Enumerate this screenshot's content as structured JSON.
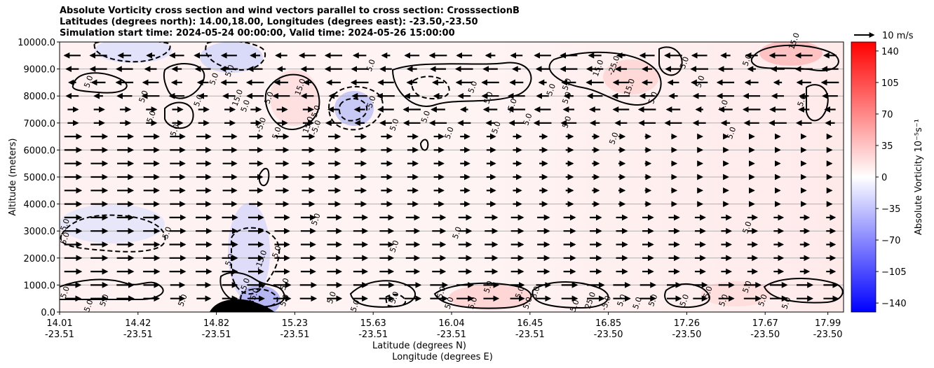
{
  "chart_data": {
    "type": "contour",
    "title_lines": [
      "Absolute Vorticity cross section and wind vectors parallel to cross section: CrosssectionB",
      "Latitudes (degrees north): 14.00,18.00, Longitudes (degrees east): -23.50,-23.50",
      "Simulation start time: 2024-05-24 00:00:00, Valid time: 2024-05-26 15:00:00"
    ],
    "ylabel": "Altitude (meters)",
    "xlabel_line1": "Latitude (degrees N)",
    "xlabel_line2": "Longitude (degrees E)",
    "ylim": [
      0,
      10000
    ],
    "yticks": [
      0,
      1000,
      2000,
      3000,
      4000,
      5000,
      6000,
      7000,
      8000,
      9000,
      10000
    ],
    "ytick_labels": [
      "0.0",
      "1000.0",
      "2000.0",
      "3000.0",
      "4000.0",
      "5000.0",
      "6000.0",
      "7000.0",
      "8000.0",
      "9000.0",
      "10000.0"
    ],
    "xticks": [
      {
        "lat": "14.01",
        "lon": "-23.51"
      },
      {
        "lat": "14.42",
        "lon": "-23.51"
      },
      {
        "lat": "14.82",
        "lon": "-23.51"
      },
      {
        "lat": "15.23",
        "lon": "-23.51"
      },
      {
        "lat": "15.63",
        "lon": "-23.51"
      },
      {
        "lat": "16.04",
        "lon": "-23.51"
      },
      {
        "lat": "16.45",
        "lon": "-23.51"
      },
      {
        "lat": "16.85",
        "lon": "-23.50"
      },
      {
        "lat": "17.26",
        "lon": "-23.50"
      },
      {
        "lat": "17.67",
        "lon": "-23.50"
      },
      {
        "lat": "17.99",
        "lon": "-23.50"
      }
    ],
    "xtick_fractions": [
      0,
      0.1,
      0.2,
      0.3,
      0.4,
      0.5,
      0.6,
      0.7,
      0.8,
      0.9,
      0.98
    ],
    "colorbar": {
      "label": "Absolute Vorticity 10⁻⁵s⁻¹",
      "range": [
        -150,
        150
      ],
      "ticks": [
        140,
        105,
        70,
        35,
        0,
        -35,
        -70,
        -105,
        -140
      ],
      "tick_labels": [
        "140",
        "105",
        "70",
        "35",
        "0",
        "−35",
        "−70",
        "−105",
        "−140"
      ],
      "colormap": "bwr"
    },
    "quiver_key": {
      "label": "10 m/s"
    },
    "contour_labels": [
      {
        "text": "5.0",
        "x": 0.01,
        "y": 3200
      },
      {
        "text": "5.0",
        "x": 0.04,
        "y": 8500
      },
      {
        "text": "5.0",
        "x": 0.11,
        "y": 7950
      },
      {
        "text": "5.0",
        "x": 0.12,
        "y": 7200
      },
      {
        "text": "5.0",
        "x": 0.15,
        "y": 6700
      },
      {
        "text": "5.0",
        "x": 0.18,
        "y": 7800
      },
      {
        "text": "5.0",
        "x": 0.2,
        "y": 8600
      },
      {
        "text": "5.0",
        "x": 0.22,
        "y": 8900
      },
      {
        "text": "5.0",
        "x": 0.24,
        "y": 7600
      },
      {
        "text": "15.0",
        "x": 0.23,
        "y": 7900
      },
      {
        "text": "5.0",
        "x": 0.33,
        "y": 7400
      },
      {
        "text": "5.0",
        "x": 0.27,
        "y": 7900
      },
      {
        "text": "-5.0",
        "x": 0.26,
        "y": 6900
      },
      {
        "text": "5.0",
        "x": 0.28,
        "y": 6600
      },
      {
        "text": "15.0",
        "x": 0.31,
        "y": 8300
      },
      {
        "text": "15.0",
        "x": 0.32,
        "y": 6900
      },
      {
        "text": "-5.0",
        "x": 0.33,
        "y": 6800
      },
      {
        "text": "-5.0",
        "x": 0.4,
        "y": 7700
      },
      {
        "text": "5.0",
        "x": 0.4,
        "y": 9100
      },
      {
        "text": "5.0",
        "x": 0.43,
        "y": 6900
      },
      {
        "text": "5.0",
        "x": 0.47,
        "y": 7200
      },
      {
        "text": "5.0",
        "x": 0.5,
        "y": 6600
      },
      {
        "text": "5.0",
        "x": 0.53,
        "y": 8300
      },
      {
        "text": "5.0",
        "x": 0.55,
        "y": 7900
      },
      {
        "text": "-5.0",
        "x": 0.58,
        "y": 7600
      },
      {
        "text": "5.0",
        "x": 0.6,
        "y": 7100
      },
      {
        "text": "5.0",
        "x": 0.63,
        "y": 8200
      },
      {
        "text": "5.0",
        "x": 0.65,
        "y": 8400
      },
      {
        "text": "5.0",
        "x": 0.65,
        "y": 7900
      },
      {
        "text": "15.0",
        "x": 0.69,
        "y": 9000
      },
      {
        "text": "-25.0",
        "x": 0.71,
        "y": 9100
      },
      {
        "text": "15.0",
        "x": 0.73,
        "y": 8300
      },
      {
        "text": "5.0",
        "x": 0.76,
        "y": 7900
      },
      {
        "text": "5.0",
        "x": 0.8,
        "y": 9200
      },
      {
        "text": "5.0",
        "x": 0.82,
        "y": 8500
      },
      {
        "text": "5.0",
        "x": 0.85,
        "y": 7600
      },
      {
        "text": "5.0",
        "x": 0.86,
        "y": 6600
      },
      {
        "text": "5.0",
        "x": 0.88,
        "y": 9300
      },
      {
        "text": "5.0",
        "x": 0.95,
        "y": 7800
      },
      {
        "text": "15.0",
        "x": 0.94,
        "y": 10000
      },
      {
        "text": "5.0",
        "x": 0.56,
        "y": 6800
      },
      {
        "text": "5.0",
        "x": 0.65,
        "y": 7000
      },
      {
        "text": "5.0",
        "x": 0.71,
        "y": 6400
      },
      {
        "text": "5.0",
        "x": 0.33,
        "y": 3400
      },
      {
        "text": "5.0",
        "x": 0.01,
        "y": 2700
      },
      {
        "text": "5.0",
        "x": 0.14,
        "y": 2900
      },
      {
        "text": "5.0",
        "x": 0.22,
        "y": 1900
      },
      {
        "text": "-15.0",
        "x": 0.26,
        "y": 1900
      },
      {
        "text": "5.0",
        "x": 0.28,
        "y": 2200
      },
      {
        "text": "5.0",
        "x": 0.43,
        "y": 2400
      },
      {
        "text": "5.0",
        "x": 0.51,
        "y": 2900
      },
      {
        "text": "5.0",
        "x": 0.88,
        "y": 3100
      },
      {
        "text": "5.0",
        "x": 0.01,
        "y": 700
      },
      {
        "text": "5.0",
        "x": 0.04,
        "y": 200
      },
      {
        "text": "5.0",
        "x": 0.06,
        "y": 400
      },
      {
        "text": "5.0",
        "x": 0.16,
        "y": 400
      },
      {
        "text": "5.0",
        "x": 0.24,
        "y": 1000
      },
      {
        "text": "-35.0",
        "x": 0.25,
        "y": 500
      },
      {
        "text": "5.0",
        "x": 0.29,
        "y": 1000
      },
      {
        "text": "5.0",
        "x": 0.29,
        "y": 400
      },
      {
        "text": "5.0",
        "x": 0.35,
        "y": 500
      },
      {
        "text": "5.0",
        "x": 0.38,
        "y": 200
      },
      {
        "text": "5.0",
        "x": 0.43,
        "y": 500
      },
      {
        "text": "5.0",
        "x": 0.49,
        "y": 700
      },
      {
        "text": "5.0",
        "x": 0.5,
        "y": 300
      },
      {
        "text": "5.0",
        "x": 0.53,
        "y": 300
      },
      {
        "text": "5.0",
        "x": 0.55,
        "y": 900
      },
      {
        "text": "5.0",
        "x": 0.59,
        "y": 700
      },
      {
        "text": "5.0",
        "x": 0.6,
        "y": 300
      },
      {
        "text": "5.0",
        "x": 0.61,
        "y": 700
      },
      {
        "text": "5.0",
        "x": 0.66,
        "y": 200
      },
      {
        "text": "25.0",
        "x": 0.68,
        "y": 400
      },
      {
        "text": "-5.0",
        "x": 0.7,
        "y": 300
      },
      {
        "text": "5.0",
        "x": 0.72,
        "y": 400
      },
      {
        "text": "5.0",
        "x": 0.74,
        "y": 300
      },
      {
        "text": "5.0",
        "x": 0.76,
        "y": 400
      },
      {
        "text": "5.0",
        "x": 0.8,
        "y": 400
      },
      {
        "text": "5.0",
        "x": 0.83,
        "y": 700
      },
      {
        "text": "5.0",
        "x": 0.85,
        "y": 400
      },
      {
        "text": "5.0",
        "x": 0.88,
        "y": 900
      },
      {
        "text": "5.0",
        "x": 0.9,
        "y": 400
      },
      {
        "text": "5.0",
        "x": 0.93,
        "y": 300
      }
    ]
  }
}
